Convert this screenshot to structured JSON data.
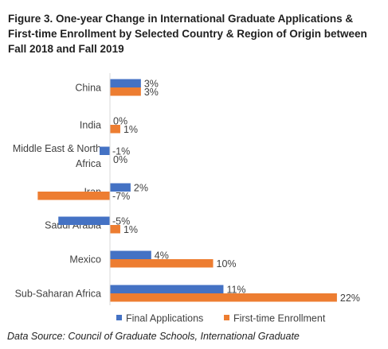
{
  "title": "Figure 3. One-year Change in International Graduate Applications & First-time Enrollment by Selected Country & Region of Origin between Fall 2018 and Fall 2019",
  "source": "Data Source: Council of Graduate Schools, International Graduate",
  "chart_data": {
    "type": "bar",
    "orientation": "horizontal",
    "categories": [
      "China",
      "India",
      "Middle East & North Africa",
      "Iran",
      "Saudi Arabia",
      "Mexico",
      "Sub-Saharan Africa"
    ],
    "series": [
      {
        "name": "Final Applications",
        "color": "#4472c4",
        "values": [
          3,
          0,
          -1,
          2,
          -5,
          4,
          11
        ],
        "labels": [
          "3%",
          "0%",
          "-1%",
          "2%",
          "-5%",
          "4%",
          "11%"
        ]
      },
      {
        "name": "First-time Enrollment",
        "color": "#ed7d31",
        "values": [
          3,
          1,
          0,
          -7,
          1,
          10,
          22
        ],
        "labels": [
          "3%",
          "1%",
          "0%",
          "-7%",
          "1%",
          "10%",
          "22%"
        ]
      }
    ],
    "xlim": [
      -7,
      22
    ],
    "legend": "bottom",
    "grid": false
  }
}
